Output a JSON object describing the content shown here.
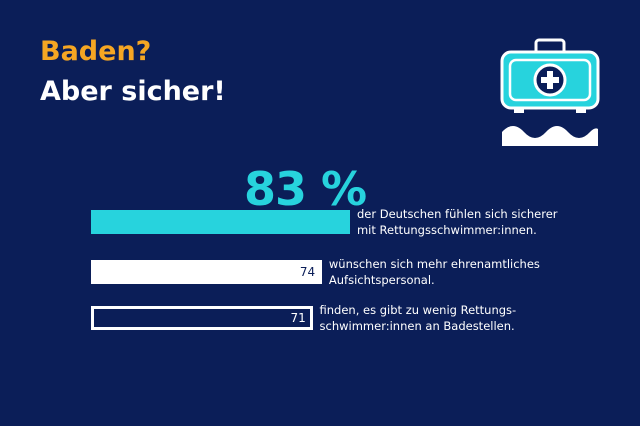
{
  "header": {
    "line1": "Baden?",
    "line2": "Aber sicher!"
  },
  "colors": {
    "background": "#0b1e58",
    "accent_orange": "#f5a623",
    "accent_cyan": "#27d3dd",
    "white": "#ffffff"
  },
  "icon": {
    "name": "first-aid-kit-over-waves-icon"
  },
  "chart_data": {
    "type": "bar",
    "orientation": "horizontal",
    "unit": "%",
    "xlim": [
      0,
      100
    ],
    "bars": [
      {
        "value": 83,
        "value_label": "83 %",
        "label_lines": [
          "der Deutschen fühlen sich sicherer",
          "mit Rettungsschwimmer:innen."
        ],
        "style": "filled-cyan"
      },
      {
        "value": 74,
        "value_label": "74",
        "label_lines": [
          "wünschen sich mehr ehrenamtliches",
          "Aufsichtspersonal."
        ],
        "style": "filled-white"
      },
      {
        "value": 71,
        "value_label": "71",
        "label_lines": [
          "finden, es gibt zu wenig Rettungs-",
          "schwimmer:innen an Badestellen."
        ],
        "style": "outline-white"
      }
    ]
  }
}
